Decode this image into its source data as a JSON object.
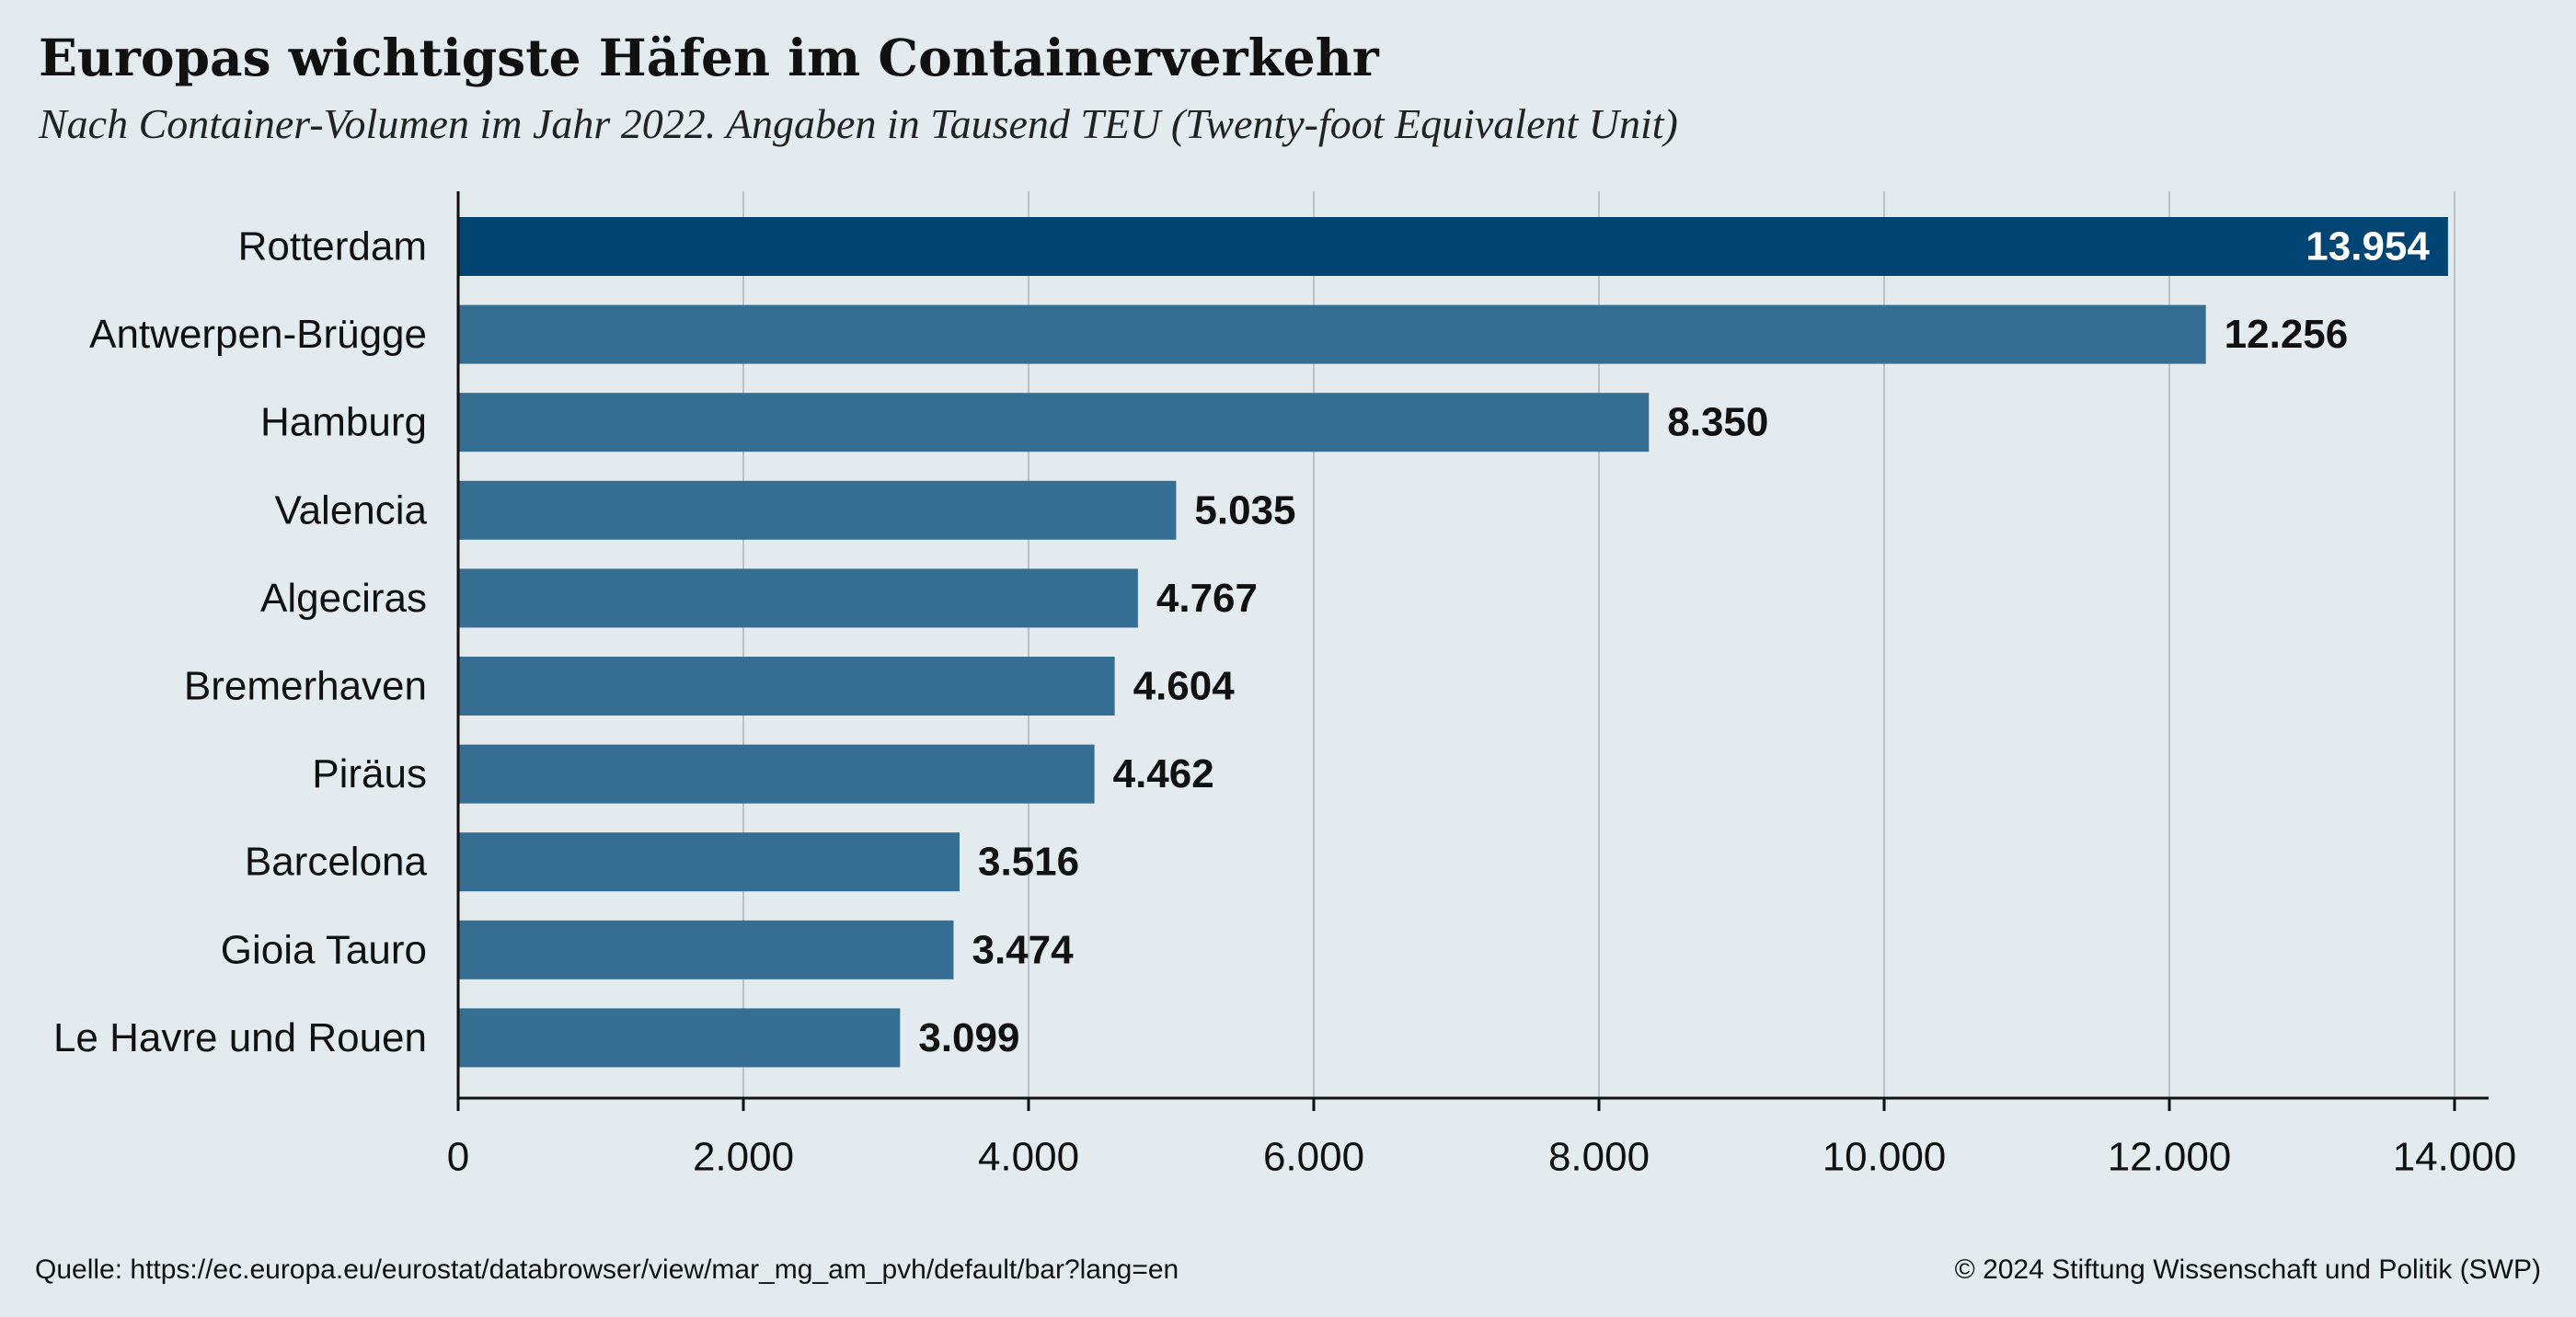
{
  "chart_data": {
    "type": "bar",
    "orientation": "horizontal",
    "title": "Europas wichtigste Häfen im Containerverkehr",
    "subtitle": "Nach Container-Volumen im Jahr 2022. Angaben in Tausend TEU (Twenty-foot Equivalent Unit)",
    "categories": [
      "Rotterdam",
      "Antwerpen-Brügge",
      "Hamburg",
      "Valencia",
      "Algeciras",
      "Bremerhaven",
      "Piräus",
      "Barcelona",
      "Gioia Tauro",
      "Le Havre und Rouen"
    ],
    "values": [
      13954,
      12256,
      8350,
      5035,
      4767,
      4604,
      4462,
      3516,
      3474,
      3099
    ],
    "value_labels": [
      "13.954",
      "12.256",
      "8.350",
      "5.035",
      "4.767",
      "4.604",
      "4.462",
      "3.516",
      "3.474",
      "3.099"
    ],
    "xlim": [
      0,
      14000
    ],
    "x_ticks": [
      0,
      2000,
      4000,
      6000,
      8000,
      10000,
      12000,
      14000
    ],
    "x_tick_labels": [
      "0",
      "2.000",
      "4.000",
      "6.000",
      "8.000",
      "10.000",
      "12.000",
      "14.000"
    ],
    "grid": "vertical",
    "highlight_color": "#004474",
    "bar_color": "#356d93"
  },
  "footer": {
    "source": "Quelle: https://ec.europa.eu/eurostat/databrowser/view/mar_mg_am_pvh/default/bar?lang=en",
    "copyright": "© 2024 Stiftung Wissenschaft und Politik (SWP)"
  }
}
